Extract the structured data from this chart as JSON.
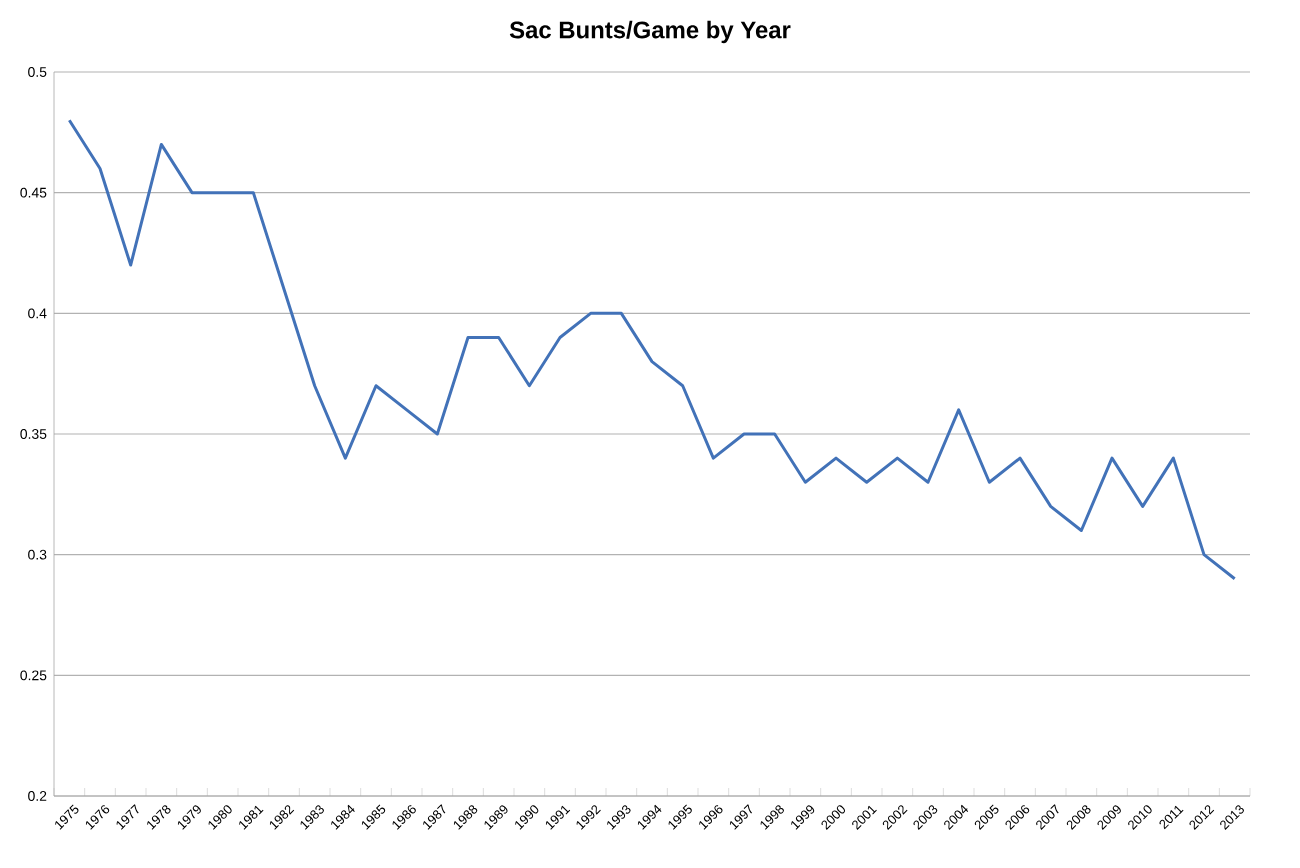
{
  "chart_data": {
    "type": "line",
    "title": "Sac Bunts/Game by Year",
    "categories": [
      "1975",
      "1976",
      "1977",
      "1978",
      "1979",
      "1980",
      "1981",
      "1982",
      "1983",
      "1984",
      "1985",
      "1986",
      "1987",
      "1988",
      "1989",
      "1990",
      "1991",
      "1992",
      "1993",
      "1994",
      "1995",
      "1996",
      "1997",
      "1998",
      "1999",
      "2000",
      "2001",
      "2002",
      "2003",
      "2004",
      "2005",
      "2006",
      "2007",
      "2008",
      "2009",
      "2010",
      "2011",
      "2012",
      "2013"
    ],
    "values": [
      0.48,
      0.46,
      0.42,
      0.47,
      0.45,
      0.45,
      0.45,
      0.41,
      0.37,
      0.34,
      0.37,
      0.36,
      0.35,
      0.39,
      0.39,
      0.37,
      0.39,
      0.4,
      0.4,
      0.38,
      0.37,
      0.34,
      0.35,
      0.35,
      0.33,
      0.34,
      0.33,
      0.34,
      0.33,
      0.36,
      0.33,
      0.34,
      0.32,
      0.31,
      0.34,
      0.32,
      0.34,
      0.3,
      0.29
    ],
    "color": "#4272b8",
    "ylim": [
      0.2,
      0.5
    ],
    "yticks": [
      0.2,
      0.25,
      0.3,
      0.35,
      0.4,
      0.45,
      0.5
    ],
    "grid": "y",
    "marker": "none",
    "line_style": "solid"
  }
}
